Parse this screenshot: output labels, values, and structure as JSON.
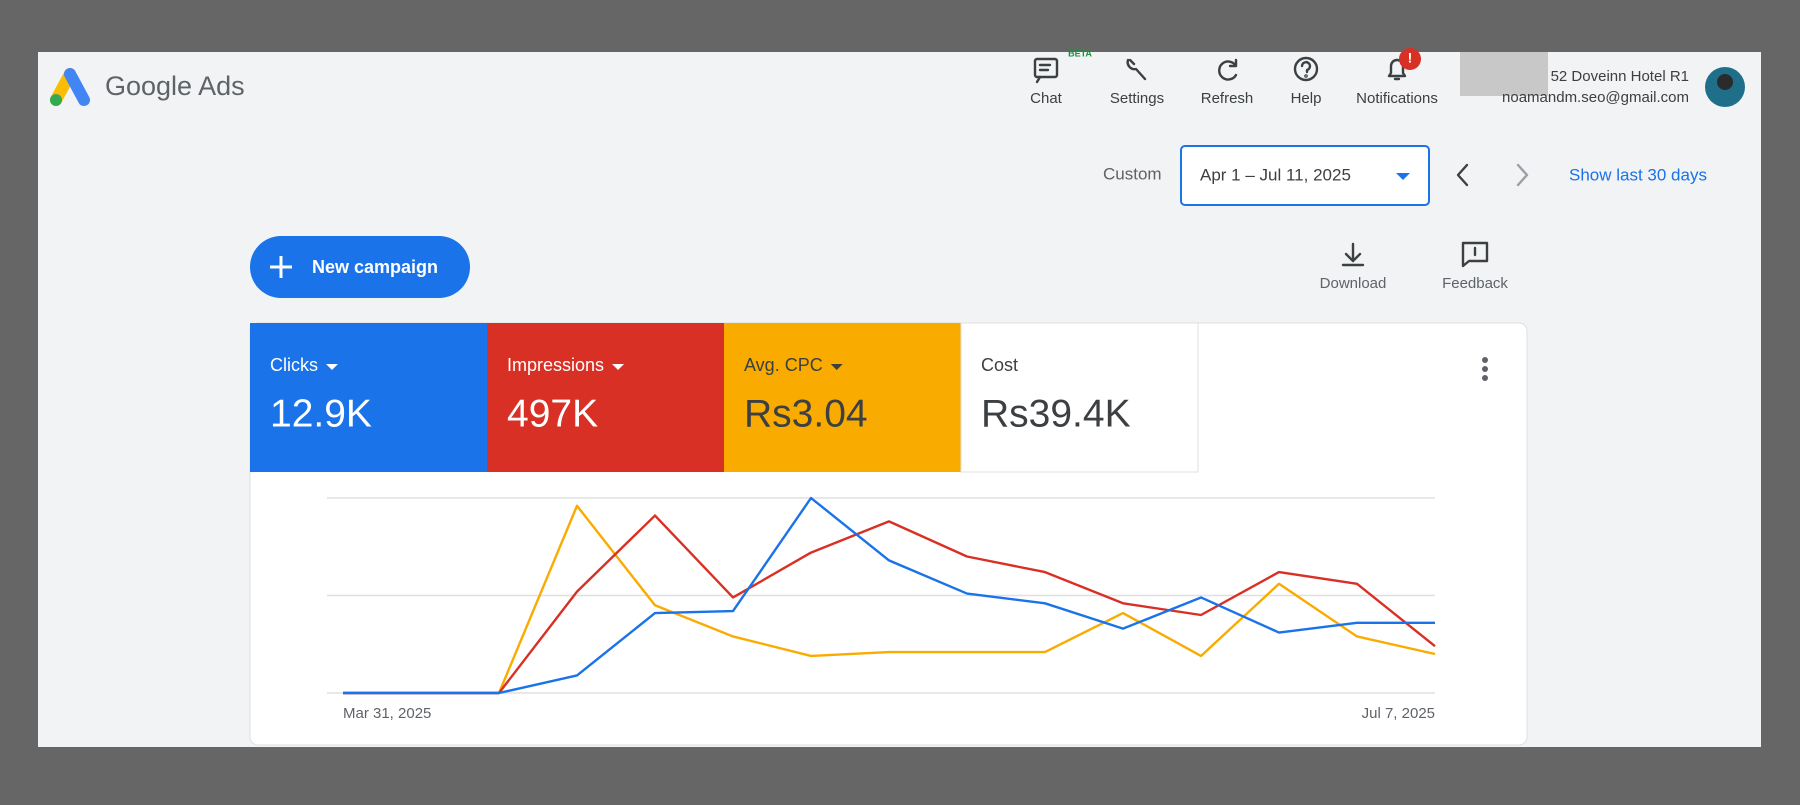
{
  "header": {
    "product": "Google Ads",
    "tools": [
      {
        "label": "Chat",
        "badge": "BETA"
      },
      {
        "label": "Settings"
      },
      {
        "label": "Refresh"
      },
      {
        "label": "Help"
      },
      {
        "label": "Notifications",
        "badge": "!"
      }
    ],
    "account": {
      "name": "52 Doveinn Hotel R1",
      "email": "noamandm.seo@gmail.com"
    }
  },
  "date_bar": {
    "preset": "Custom",
    "range": "Apr 1 – Jul 11, 2025",
    "shortcut": "Show last 30 days"
  },
  "actions": {
    "new_campaign": "New campaign",
    "download": "Download",
    "feedback": "Feedback"
  },
  "metrics": [
    {
      "label": "Clicks",
      "value": "12.9K",
      "color": "#1a73e8"
    },
    {
      "label": "Impressions",
      "value": "497K",
      "color": "#d93025"
    },
    {
      "label": "Avg. CPC",
      "value": "Rs3.04",
      "color": "#f9ab00"
    },
    {
      "label": "Cost",
      "value": "Rs39.4K",
      "color": "#ffffff"
    }
  ],
  "chart_data": {
    "type": "line",
    "categories": [
      "Mar 31, 2025",
      null,
      null,
      null,
      null,
      null,
      null,
      null,
      null,
      null,
      null,
      null,
      null,
      null,
      "Jul 7, 2025"
    ],
    "ylim": [
      0,
      100
    ],
    "yticks": [
      0,
      50,
      100
    ],
    "grid": true,
    "series": [
      {
        "color": "#1a73e8",
        "values": [
          0,
          0,
          0,
          9,
          41,
          42,
          100,
          68,
          51,
          46,
          33,
          49,
          31,
          36,
          36
        ]
      },
      {
        "color": "#d93025",
        "values": [
          0,
          0,
          0,
          52,
          91,
          49,
          72,
          88,
          70,
          62,
          46,
          40,
          62,
          56,
          24
        ]
      },
      {
        "color": "#f9ab00",
        "values": [
          0,
          0,
          0,
          96,
          45,
          29,
          19,
          21,
          21,
          21,
          41,
          19,
          56,
          29,
          20
        ]
      }
    ]
  }
}
